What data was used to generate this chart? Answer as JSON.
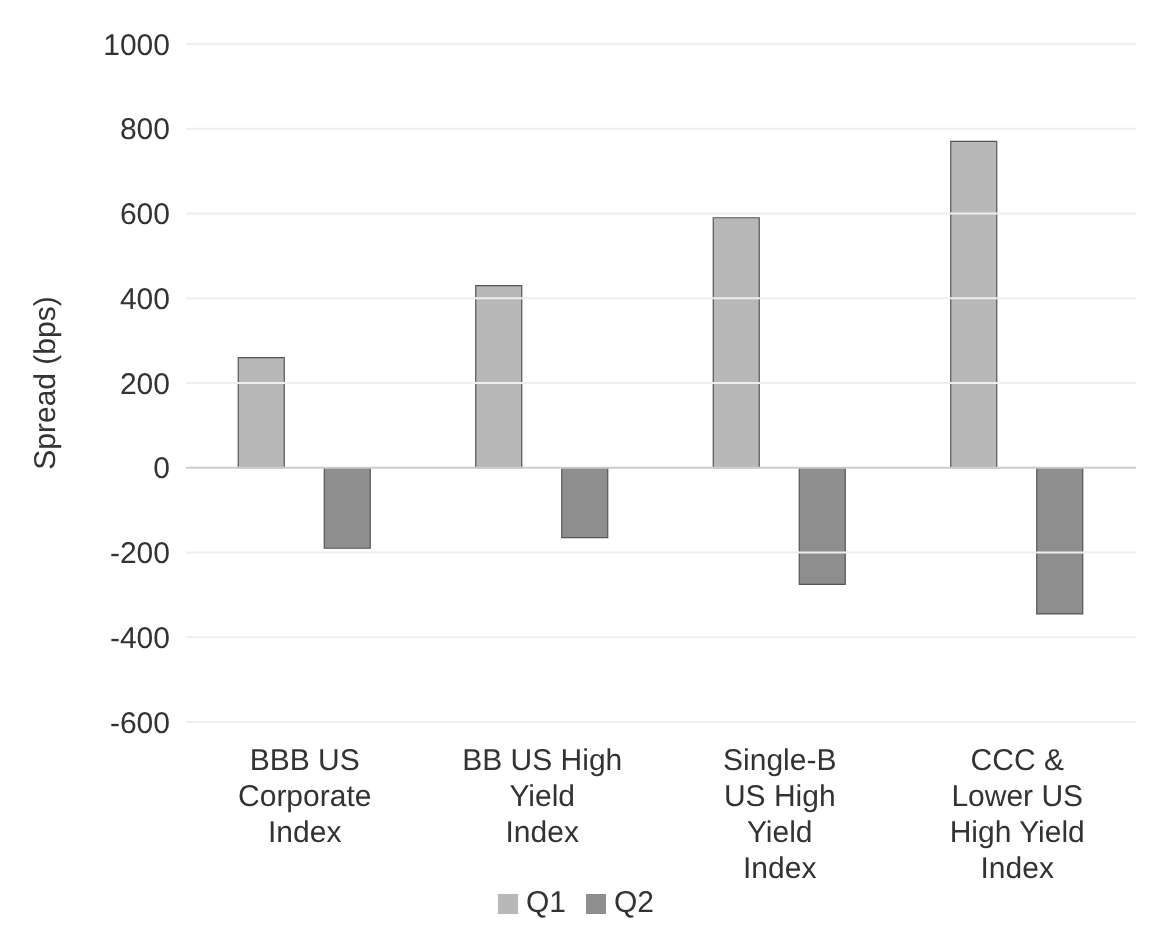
{
  "chart_data": {
    "type": "bar",
    "ylabel": "Spread (bps)",
    "categories": [
      "BBB US Corporate Index",
      "BB US High Yield Index",
      "Single-B US High Yield Index",
      "CCC & Lower US High Yield Index"
    ],
    "series": [
      {
        "name": "Q1",
        "color": "#b8b8b8",
        "values": [
          260,
          430,
          590,
          770
        ]
      },
      {
        "name": "Q2",
        "color": "#8e8e8e",
        "values": [
          -190,
          -165,
          -275,
          -345
        ]
      }
    ],
    "ylim": [
      -600,
      1000
    ],
    "yticks": [
      -600,
      -400,
      -200,
      0,
      200,
      400,
      600,
      800,
      1000
    ],
    "grid": "y",
    "legend": "bottom"
  }
}
